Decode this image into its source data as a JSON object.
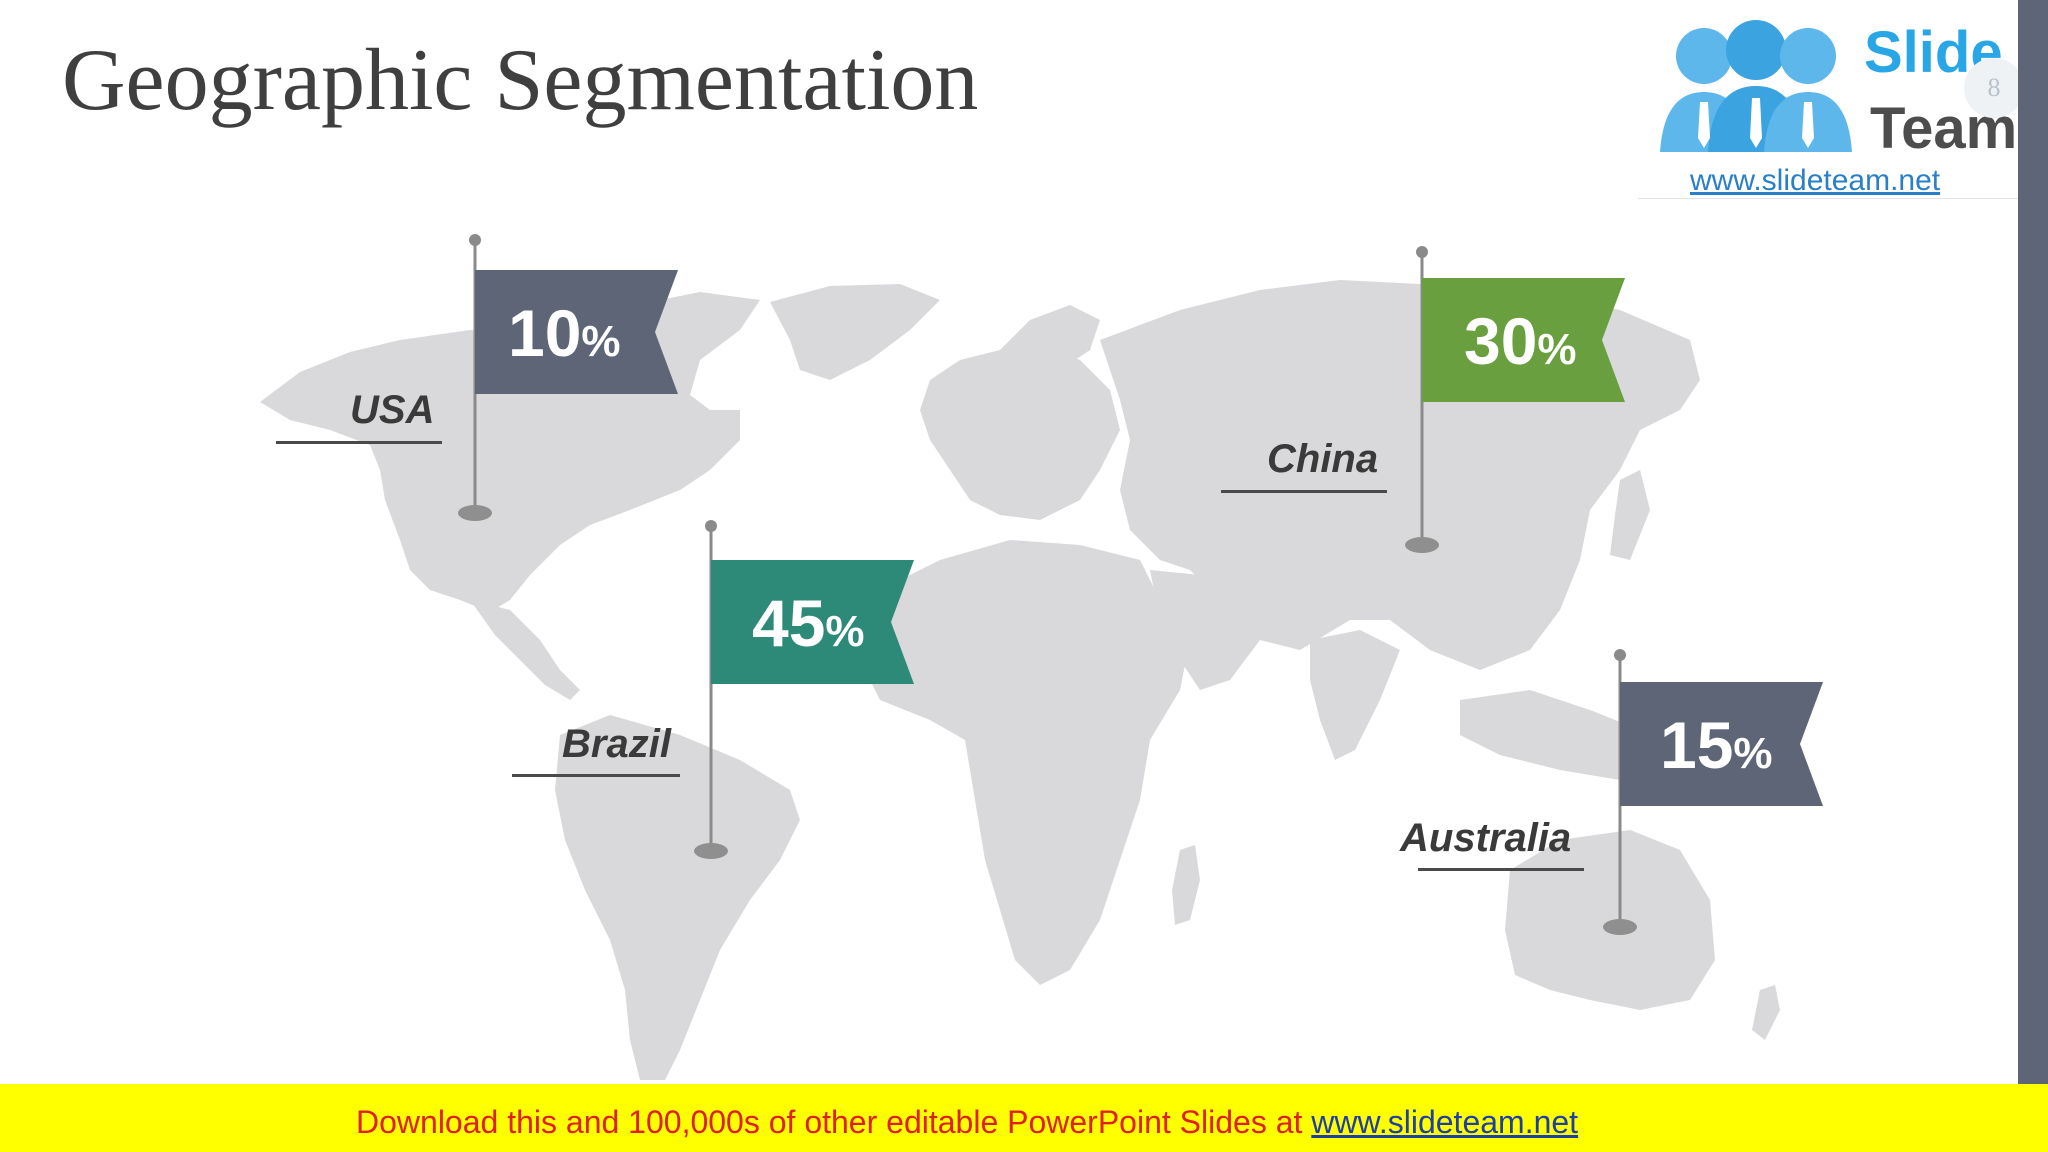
{
  "slide": {
    "title": "Geographic Segmentation",
    "page_number": "8"
  },
  "logo": {
    "word1": "Slide",
    "word2": "Team",
    "url": "www.slideteam.net"
  },
  "markers": [
    {
      "country": "USA",
      "value": "10",
      "unit": "%",
      "color": "#5d6577"
    },
    {
      "country": "Brazil",
      "value": "45",
      "unit": "%",
      "color": "#2e8a78"
    },
    {
      "country": "China",
      "value": "30",
      "unit": "%",
      "color": "#6a9f3f"
    },
    {
      "country": "Australia",
      "value": "15",
      "unit": "%",
      "color": "#5d6577"
    }
  ],
  "banner": {
    "text": "Download this and 100,000s of other editable PowerPoint Slides at ",
    "link": "www.slideteam.net"
  },
  "colors": {
    "map_land": "#d9d9dc",
    "title_text": "#3f3f3f",
    "banner_bg": "#ffff00",
    "banner_text": "#e0201e"
  }
}
